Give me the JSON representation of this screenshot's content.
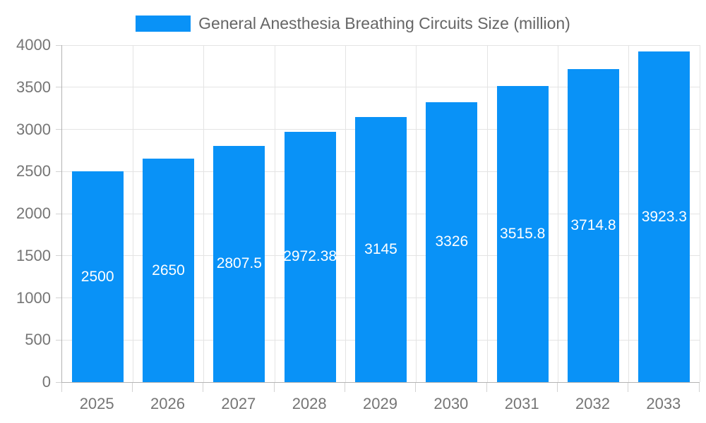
{
  "chart_data": {
    "type": "bar",
    "title": "General Anesthesia Breathing Circuits Size (million)",
    "categories": [
      "2025",
      "2026",
      "2027",
      "2028",
      "2029",
      "2030",
      "2031",
      "2032",
      "2033"
    ],
    "values": [
      2500,
      2650,
      2807.5,
      2972.38,
      3145,
      3326,
      3515.8,
      3714.8,
      3923.3
    ],
    "bar_labels": [
      "2500",
      "2650",
      "2807.5",
      "2972.38",
      "3145",
      "3326",
      "3515.8",
      "3714.8",
      "3923.3"
    ],
    "xlabel": "",
    "ylabel": "",
    "ylim": [
      0,
      4000
    ],
    "ytick_interval": 500,
    "ytick_labels": [
      "0",
      "500",
      "1000",
      "1500",
      "2000",
      "2500",
      "3000",
      "3500",
      "4000"
    ],
    "grid": true,
    "legend_position": "top-center",
    "bar_label_position": "inside-middle"
  },
  "colors": {
    "bar": "#0992f7",
    "grid": "#e4e4e4",
    "axis": "#b3b3b3",
    "tick": "#d2d2d2",
    "axis_label": "#757575",
    "legend_text": "#666666",
    "bar_label": "#ffffff",
    "background": "#ffffff"
  }
}
